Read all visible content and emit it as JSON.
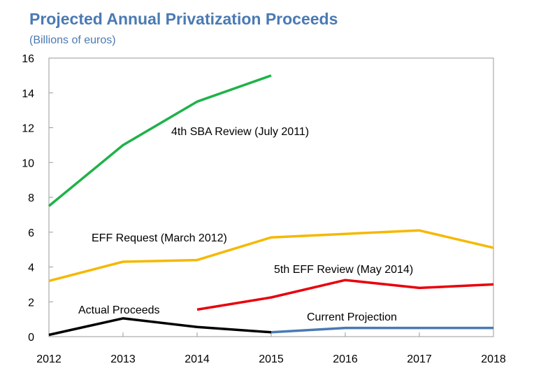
{
  "chart_data": {
    "type": "line",
    "title": "Projected Annual Privatization Proceeds",
    "subtitle": "(Billions of euros)",
    "xlabel": "",
    "ylabel": "",
    "categories": [
      "2012",
      "2013",
      "2014",
      "2015",
      "2016",
      "2017",
      "2018"
    ],
    "ylim": [
      0,
      16
    ],
    "yticks": [
      "0",
      "2",
      "4",
      "6",
      "8",
      "10",
      "12",
      "14",
      "16"
    ],
    "grid": false,
    "legend": "none",
    "series": [
      {
        "name": "4th SBA Review (July 2011)",
        "color": "#1fb24a",
        "values": [
          7.5,
          11.0,
          13.5,
          15.0,
          null,
          null,
          null
        ]
      },
      {
        "name": "EFF Request (March 2012)",
        "color": "#f5b800",
        "values": [
          3.2,
          4.3,
          4.4,
          5.7,
          5.9,
          6.1,
          5.1
        ]
      },
      {
        "name": "5th EFF Review (May 2014)",
        "color": "#e8000b",
        "values": [
          null,
          null,
          1.55,
          2.25,
          3.25,
          2.8,
          3.0
        ]
      },
      {
        "name": "Actual Proceeds",
        "color": "#000000",
        "values": [
          0.1,
          1.05,
          0.55,
          0.25,
          null,
          null,
          null
        ]
      },
      {
        "name": "Current Projection",
        "color": "#4a7ab3",
        "values": [
          null,
          null,
          null,
          0.25,
          0.5,
          0.5,
          0.5
        ]
      }
    ]
  }
}
